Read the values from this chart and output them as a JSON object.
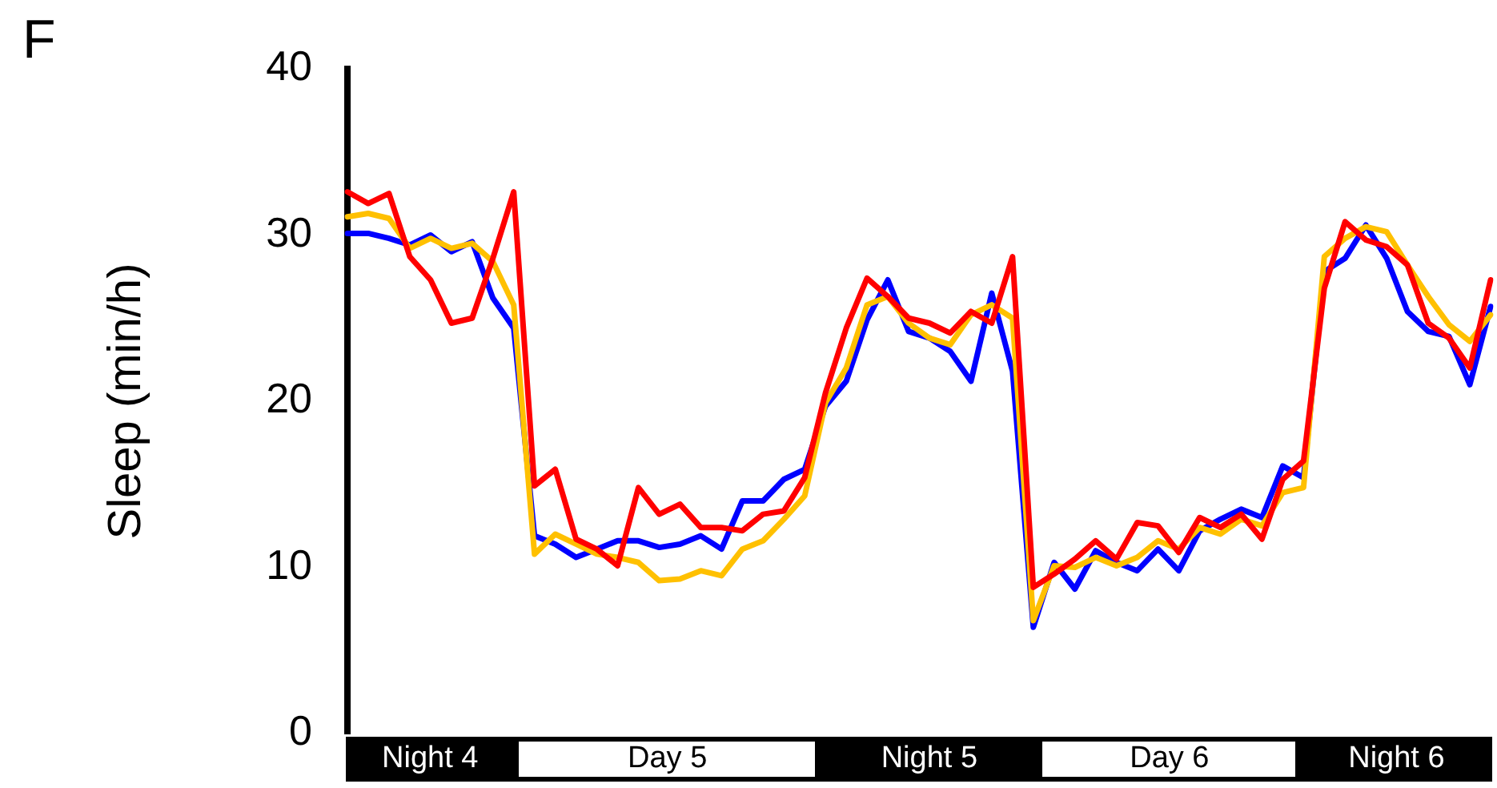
{
  "chart_data": {
    "type": "line",
    "ylabel": "Sleep (min/h)",
    "annotations": [
      "F",
      "Night 4",
      "Day 5",
      "Night 5",
      "Day 6",
      "Night 6"
    ],
    "categories": [
      null,
      null,
      null,
      null,
      null,
      null,
      null,
      null,
      null,
      null,
      null,
      null,
      null,
      null,
      null,
      null,
      null,
      null,
      null,
      null,
      null,
      null,
      null,
      null,
      null,
      null,
      null,
      null,
      null,
      null,
      null,
      null,
      null,
      null,
      null,
      null,
      null,
      null,
      null,
      null,
      null,
      null,
      null,
      null,
      null,
      null,
      null,
      null,
      null,
      null,
      null,
      null,
      null,
      null,
      null,
      null
    ],
    "series": [
      {
        "color": "#0000ff",
        "values": [
          30.1,
          30.1,
          29.8,
          29.4,
          30.0,
          29.0,
          29.6,
          26.2,
          24.4,
          11.9,
          11.4,
          10.6,
          11.1,
          11.6,
          11.6,
          11.2,
          11.4,
          11.9,
          11.1,
          14.0,
          14.0,
          15.3,
          15.9,
          19.7,
          21.2,
          24.9,
          27.3,
          24.2,
          23.8,
          23.0,
          21.2,
          26.5,
          21.8,
          6.4,
          10.3,
          8.7,
          11.0,
          10.3,
          9.8,
          11.1,
          9.8,
          12.2,
          12.9,
          13.5,
          13.0,
          16.1,
          15.4,
          27.8,
          28.6,
          30.6,
          28.6,
          25.4,
          24.2,
          23.9,
          21.0,
          25.7
        ]
      },
      {
        "color": "#ffc000",
        "values": [
          31.1,
          31.3,
          31.0,
          29.2,
          29.8,
          29.2,
          29.5,
          28.4,
          25.8,
          10.8,
          12.0,
          11.4,
          10.8,
          10.6,
          10.3,
          9.2,
          9.3,
          9.8,
          9.5,
          11.1,
          11.6,
          12.9,
          14.3,
          19.9,
          22.0,
          25.8,
          26.3,
          24.7,
          23.8,
          23.4,
          25.2,
          25.8,
          25.0,
          6.8,
          10.1,
          10.0,
          10.6,
          10.1,
          10.6,
          11.6,
          11.1,
          12.4,
          12.0,
          12.9,
          12.5,
          14.5,
          14.8,
          28.7,
          29.8,
          30.5,
          30.2,
          28.2,
          26.3,
          24.6,
          23.6,
          25.2
        ]
      },
      {
        "color": "#ff0000",
        "values": [
          32.6,
          31.9,
          32.5,
          28.7,
          27.3,
          24.7,
          25.0,
          28.6,
          32.6,
          14.9,
          15.9,
          11.7,
          11.1,
          10.1,
          14.8,
          13.2,
          13.8,
          12.4,
          12.4,
          12.2,
          13.2,
          13.4,
          15.4,
          20.5,
          24.4,
          27.4,
          26.3,
          25.0,
          24.7,
          24.1,
          25.4,
          24.7,
          28.7,
          8.8,
          9.6,
          10.5,
          11.6,
          10.5,
          12.7,
          12.5,
          10.9,
          13.0,
          12.4,
          13.2,
          11.7,
          15.3,
          16.4,
          26.8,
          30.8,
          29.7,
          29.3,
          28.2,
          24.7,
          23.8,
          22.0,
          27.3
        ]
      }
    ],
    "ylim": [
      0,
      40
    ],
    "yticks": [
      0,
      10,
      20,
      30,
      40
    ],
    "grid": false,
    "legend": false,
    "tick_labels": "y",
    "marker": "none",
    "line_style": "solid"
  }
}
